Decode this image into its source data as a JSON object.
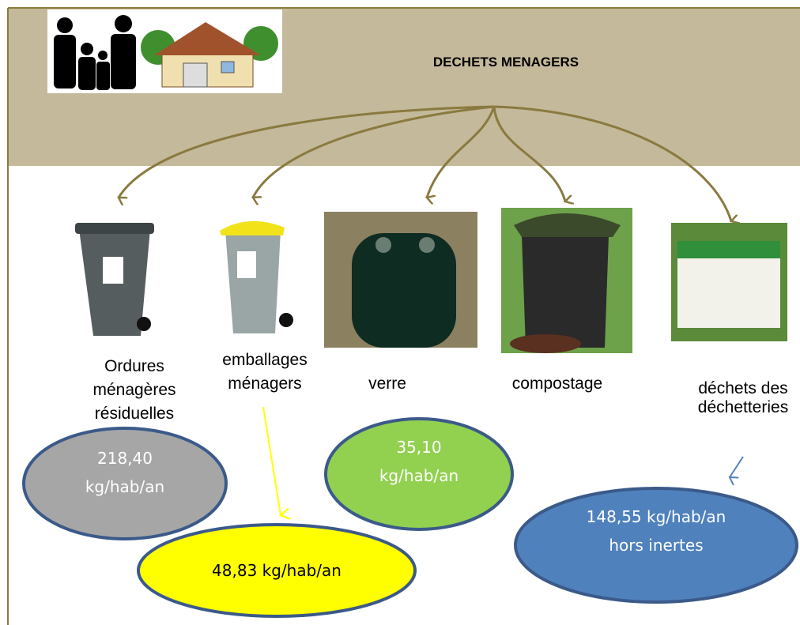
{
  "header": {
    "title": "DECHETS MENAGERS"
  },
  "items": [
    {
      "label": [
        "Ordures",
        "ménagères",
        "résiduelles"
      ],
      "value": [
        "218,40",
        "kg/hab/an"
      ]
    },
    {
      "label": [
        "emballages",
        "ménagers"
      ],
      "value": [
        "48,83 kg/hab/an"
      ]
    },
    {
      "label": [
        "verre"
      ],
      "value": [
        "35,10",
        "kg/hab/an"
      ]
    },
    {
      "label": [
        "compostage"
      ]
    },
    {
      "label": [
        "déchets des",
        "déchetteries"
      ],
      "value": [
        "148,55 kg/hab/an",
        "hors inertes"
      ]
    }
  ]
}
